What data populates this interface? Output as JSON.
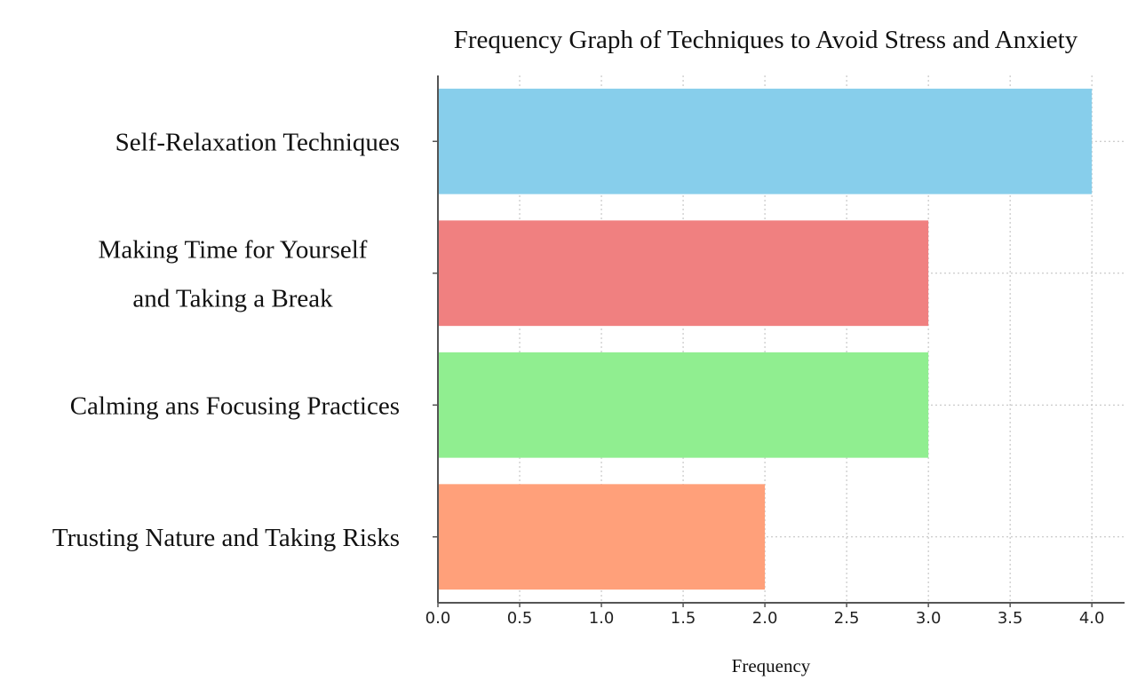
{
  "chart_data": {
    "type": "bar",
    "orientation": "horizontal",
    "title": "Frequency Graph of Techniques to Avoid Stress and Anxiety",
    "xlabel": "Frequency",
    "ylabel": "",
    "categories": [
      [
        "Self-Relaxation Techniques"
      ],
      [
        "Making Time for Yourself",
        "and Taking a Break"
      ],
      [
        "Calming ans Focusing Practices"
      ],
      [
        "Trusting Nature and Taking Risks"
      ]
    ],
    "values": [
      4,
      3,
      3,
      2
    ],
    "colors": [
      "#87ceeb",
      "#f08080",
      "#90ee90",
      "#ffa07a"
    ],
    "xlim": [
      0,
      4.2
    ],
    "xticks": [
      "0.0",
      "0.5",
      "1.0",
      "1.5",
      "2.0",
      "2.5",
      "3.0",
      "3.5",
      "4.0"
    ],
    "grid": true,
    "legend": "none"
  }
}
